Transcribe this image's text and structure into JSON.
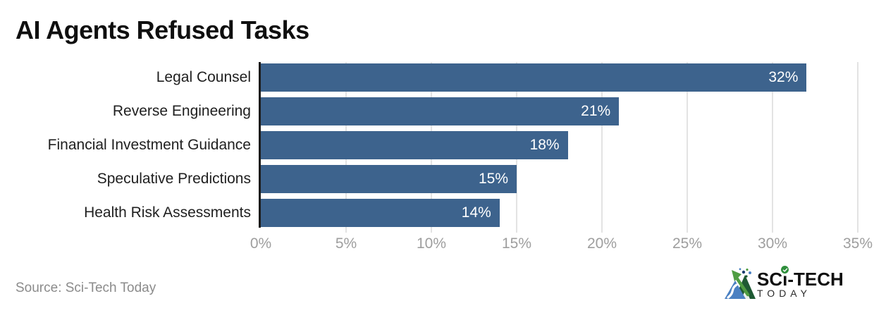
{
  "chart_data": {
    "type": "bar",
    "orientation": "horizontal",
    "title": "AI Agents Refused Tasks",
    "categories": [
      "Legal Counsel",
      "Reverse Engineering",
      "Financial Investment Guidance",
      "Speculative Predictions",
      "Health Risk Assessments"
    ],
    "values": [
      32,
      21,
      18,
      15,
      14
    ],
    "value_labels": [
      "32%",
      "21%",
      "18%",
      "15%",
      "14%"
    ],
    "xlabel": "",
    "ylabel": "",
    "xlim": [
      0,
      35
    ],
    "x_ticks": [
      0,
      5,
      10,
      15,
      20,
      25,
      30,
      35
    ],
    "x_tick_labels": [
      "0%",
      "5%",
      "10%",
      "15%",
      "20%",
      "25%",
      "30%",
      "35%"
    ],
    "grid": "vertical",
    "legend": "none",
    "bar_color": "#3d638d",
    "value_label_color": "#ffffff",
    "grid_color": "#e3e3e3",
    "axis_color": "#1a1a1a",
    "tick_color": "#9e9e9e",
    "category_label_color": "#1f1f1f"
  },
  "footer": {
    "source": "Source: Sci-Tech Today"
  },
  "logo": {
    "text_primary_left": "SC",
    "text_primary_i": "ı",
    "text_primary_right": "-TECH",
    "text_secondary": "TODAY",
    "check_icon": "check-circle",
    "colors": {
      "mark_blue": "#4a80c2",
      "mark_dark_green": "#1e5a33",
      "mark_light_green": "#4f9d42",
      "mark_navy_dot": "#1c3f6e",
      "check_green": "#2f8f3c"
    }
  }
}
